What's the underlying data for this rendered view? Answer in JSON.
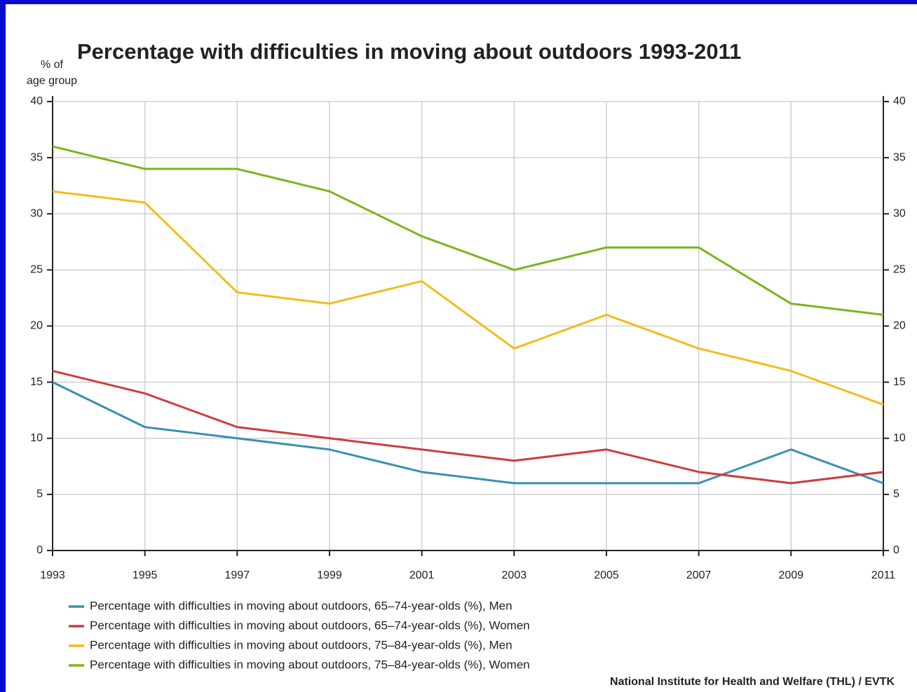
{
  "chart_data": {
    "type": "line",
    "title": "Percentage with difficulties in moving about outdoors 1993-2011",
    "y_label": [
      "% of",
      "age group"
    ],
    "source": "National Institute for Health and Welfare (THL) / EVTK",
    "x": [
      1993,
      1995,
      1997,
      1999,
      2001,
      2003,
      2005,
      2007,
      2009,
      2011
    ],
    "xlim": [
      1993,
      2011
    ],
    "xticks": [
      1993,
      1995,
      1997,
      1999,
      2001,
      2003,
      2005,
      2007,
      2009,
      2011
    ],
    "ylim": [
      0,
      40
    ],
    "yticks": [
      0,
      5,
      10,
      15,
      20,
      25,
      30,
      35,
      40
    ],
    "y2lim": [
      0,
      40
    ],
    "y2ticks": [
      0,
      5,
      10,
      15,
      20,
      25,
      30,
      35,
      40
    ],
    "grid": true,
    "legend": "bottom",
    "series": [
      {
        "name": "Percentage with difficulties in moving about outdoors, 65–74-year-olds (%), Men",
        "color": "#3a8fb0",
        "values": [
          15,
          11,
          10,
          9,
          7,
          6,
          6,
          6,
          9,
          6
        ]
      },
      {
        "name": "Percentage with difficulties in moving about outdoors, 65–74-year-olds (%), Women",
        "color": "#cc3d3d",
        "values": [
          16,
          14,
          11,
          10,
          9,
          8,
          9,
          7,
          6,
          7
        ]
      },
      {
        "name": "Percentage with difficulties in moving about outdoors, 75–84-year-olds (%), Men",
        "color": "#f0be1a",
        "values": [
          32,
          31,
          23,
          22,
          24,
          18,
          21,
          18,
          16,
          13
        ]
      },
      {
        "name": "Percentage with difficulties in moving about outdoors, 75–84-year-olds (%), Women",
        "color": "#7ab51d",
        "values": [
          36,
          34,
          34,
          32,
          28,
          25,
          27,
          27,
          22,
          21
        ]
      }
    ]
  }
}
